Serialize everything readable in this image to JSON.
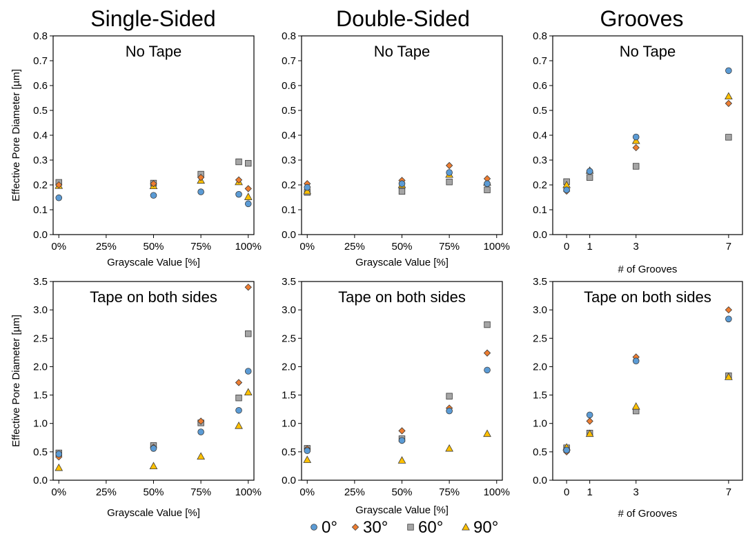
{
  "column_titles": [
    "Single-Sided",
    "Double-Sided",
    "Grooves"
  ],
  "ylabel": "Effective Pore Diameter [µm]",
  "legend": [
    {
      "label": "0°",
      "marker": "circle",
      "color": "#5b9bd5"
    },
    {
      "label": "30°",
      "marker": "diamond",
      "color": "#ed7d31"
    },
    {
      "label": "60°",
      "marker": "square",
      "color": "#a5a5a5"
    },
    {
      "label": "90°",
      "marker": "triangle",
      "color": "#ffc000"
    }
  ],
  "chart_data": [
    {
      "type": "scatter",
      "title": "No Tape",
      "xlabel": "Grayscale Value [%]",
      "ylabel": "Effective Pore Diameter [µm]",
      "xticks": [
        0,
        25,
        50,
        75,
        100
      ],
      "xticklabels": [
        "0%",
        "25%",
        "50%",
        "75%",
        "100%"
      ],
      "xlim": [
        -3,
        103
      ],
      "yticks": [
        0,
        0.1,
        0.2,
        0.3,
        0.4,
        0.5,
        0.6,
        0.7,
        0.8
      ],
      "yticklabels": [
        "0.0",
        "0.1",
        "0.2",
        "0.3",
        "0.4",
        "0.5",
        "0.6",
        "0.7",
        "0.8"
      ],
      "ylim": [
        0,
        0.8
      ],
      "x": [
        0,
        50,
        75,
        95,
        100
      ],
      "series": [
        {
          "name": "0°",
          "values": [
            0.148,
            0.158,
            0.172,
            0.162,
            0.124
          ]
        },
        {
          "name": "30°",
          "values": [
            0.2,
            0.205,
            0.23,
            0.22,
            0.185
          ]
        },
        {
          "name": "60°",
          "values": [
            0.21,
            0.207,
            0.243,
            0.293,
            0.287
          ]
        },
        {
          "name": "90°",
          "values": [
            0.197,
            0.196,
            0.218,
            0.212,
            0.152
          ]
        }
      ]
    },
    {
      "type": "scatter",
      "title": "No Tape",
      "xlabel": "Grayscale Value [%]",
      "ylabel": "",
      "xticks": [
        0,
        25,
        50,
        75,
        100
      ],
      "xticklabels": [
        "0%",
        "25%",
        "50%",
        "75%",
        "100%"
      ],
      "xlim": [
        -3,
        103
      ],
      "yticks": [
        0,
        0.1,
        0.2,
        0.3,
        0.4,
        0.5,
        0.6,
        0.7,
        0.8
      ],
      "yticklabels": [
        "0.0",
        "0.1",
        "0.2",
        "0.3",
        "0.4",
        "0.5",
        "0.6",
        "0.7",
        "0.8"
      ],
      "ylim": [
        0,
        0.8
      ],
      "x": [
        0,
        50,
        75,
        95
      ],
      "series": [
        {
          "name": "0°",
          "values": [
            0.19,
            0.205,
            0.25,
            0.205
          ]
        },
        {
          "name": "30°",
          "values": [
            0.205,
            0.218,
            0.278,
            0.225
          ]
        },
        {
          "name": "60°",
          "values": [
            0.17,
            0.174,
            0.212,
            0.18
          ]
        },
        {
          "name": "90°",
          "values": [
            0.175,
            0.2,
            0.242,
            0.21
          ]
        }
      ]
    },
    {
      "type": "scatter",
      "title": "No Tape",
      "xlabel": "# of Grooves",
      "ylabel": "",
      "xticks": [
        0,
        1,
        3,
        7
      ],
      "xticklabels": [
        "0",
        "1",
        "3",
        "7"
      ],
      "xlim": [
        -0.6,
        7.6
      ],
      "yticks": [
        0,
        0.1,
        0.2,
        0.3,
        0.4,
        0.5,
        0.6,
        0.7,
        0.8
      ],
      "yticklabels": [
        "0.0",
        "0.1",
        "0.2",
        "0.3",
        "0.4",
        "0.5",
        "0.6",
        "0.7",
        "0.8"
      ],
      "ylim": [
        0,
        0.8
      ],
      "x": [
        0,
        1,
        3,
        7
      ],
      "series": [
        {
          "name": "0°",
          "values": [
            0.18,
            0.255,
            0.393,
            0.66
          ]
        },
        {
          "name": "30°",
          "values": [
            0.175,
            0.255,
            0.35,
            0.528
          ]
        },
        {
          "name": "60°",
          "values": [
            0.213,
            0.23,
            0.275,
            0.392
          ]
        },
        {
          "name": "90°",
          "values": [
            0.2,
            0.258,
            0.378,
            0.557
          ]
        }
      ]
    },
    {
      "type": "scatter",
      "title": "Tape on both sides",
      "xlabel": "Grayscale Value [%]",
      "ylabel": "Effective Pore Diameter [µm]",
      "xticks": [
        0,
        25,
        50,
        75,
        100
      ],
      "xticklabels": [
        "0%",
        "25%",
        "50%",
        "75%",
        "100%"
      ],
      "xlim": [
        -3,
        103
      ],
      "yticks": [
        0,
        0.5,
        1.0,
        1.5,
        2.0,
        2.5,
        3.0,
        3.5
      ],
      "yticklabels": [
        "0.0",
        "0.5",
        "1.0",
        "1.5",
        "2.0",
        "2.5",
        "3.0",
        "3.5"
      ],
      "ylim": [
        0,
        3.5
      ],
      "x": [
        0,
        50,
        75,
        95,
        100
      ],
      "series": [
        {
          "name": "0°",
          "values": [
            0.46,
            0.56,
            0.85,
            1.23,
            1.92
          ]
        },
        {
          "name": "30°",
          "values": [
            0.41,
            0.58,
            1.04,
            1.72,
            3.4
          ]
        },
        {
          "name": "60°",
          "values": [
            0.48,
            0.61,
            1.01,
            1.45,
            2.58
          ]
        },
        {
          "name": "90°",
          "values": [
            0.22,
            0.25,
            0.42,
            0.96,
            1.55
          ]
        }
      ]
    },
    {
      "type": "scatter",
      "title": "Tape on both sides",
      "xlabel": "Grayscale Value [%]",
      "ylabel": "",
      "xticks": [
        0,
        25,
        50,
        75,
        100
      ],
      "xticklabels": [
        "0%",
        "25%",
        "50%",
        "75%",
        "100%"
      ],
      "xlim": [
        -3,
        103
      ],
      "yticks": [
        0,
        0.5,
        1.0,
        1.5,
        2.0,
        2.5,
        3.0,
        3.5
      ],
      "yticklabels": [
        "0.0",
        "0.5",
        "1.0",
        "1.5",
        "2.0",
        "2.5",
        "3.0",
        "3.5"
      ],
      "ylim": [
        0,
        3.5
      ],
      "x": [
        0,
        50,
        75,
        95
      ],
      "series": [
        {
          "name": "0°",
          "values": [
            0.52,
            0.7,
            1.22,
            1.94
          ]
        },
        {
          "name": "30°",
          "values": [
            0.55,
            0.87,
            1.27,
            2.24
          ]
        },
        {
          "name": "60°",
          "values": [
            0.56,
            0.73,
            1.48,
            2.74
          ]
        },
        {
          "name": "90°",
          "values": [
            0.36,
            0.35,
            0.56,
            0.82
          ]
        }
      ]
    },
    {
      "type": "scatter",
      "title": "Tape on both sides",
      "xlabel": "# of Grooves",
      "ylabel": "",
      "xticks": [
        0,
        1,
        3,
        7
      ],
      "xticklabels": [
        "0",
        "1",
        "3",
        "7"
      ],
      "xlim": [
        -0.6,
        7.6
      ],
      "yticks": [
        0,
        0.5,
        1.0,
        1.5,
        2.0,
        2.5,
        3.0,
        3.5
      ],
      "yticklabels": [
        "0.0",
        "0.5",
        "1.0",
        "1.5",
        "2.0",
        "2.5",
        "3.0",
        "3.5"
      ],
      "ylim": [
        0,
        3.5
      ],
      "x": [
        0,
        1,
        3,
        7
      ],
      "series": [
        {
          "name": "0°",
          "values": [
            0.53,
            1.15,
            2.1,
            2.84
          ]
        },
        {
          "name": "30°",
          "values": [
            0.5,
            1.04,
            2.17,
            3.0
          ]
        },
        {
          "name": "60°",
          "values": [
            0.57,
            0.83,
            1.22,
            1.84
          ]
        },
        {
          "name": "90°",
          "values": [
            0.58,
            0.82,
            1.3,
            1.82
          ]
        }
      ]
    }
  ]
}
